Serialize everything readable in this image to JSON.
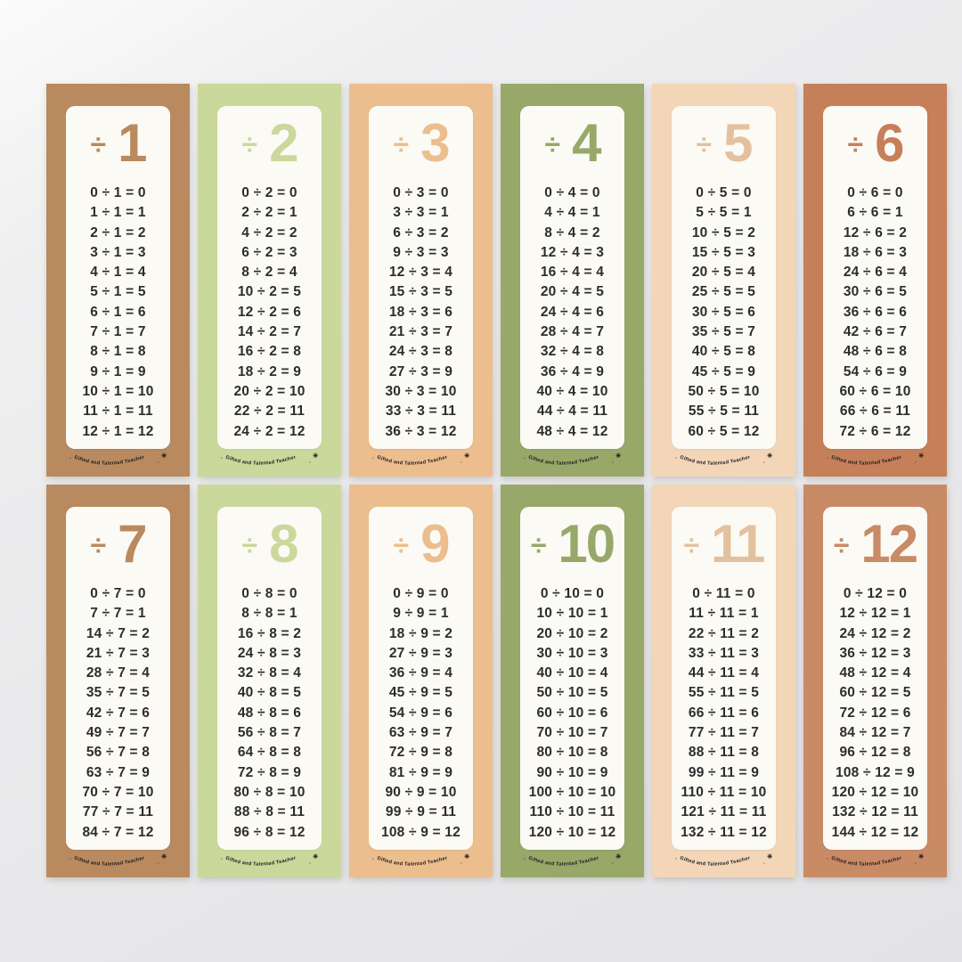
{
  "divide_sign": "÷",
  "footer": {
    "text": "Gifted and Talented Teacher",
    "star": "✳",
    "dot": "·"
  },
  "cards": [
    {
      "number": "1",
      "color": "#b98a5f",
      "heading_color": "#b98a5f",
      "equations": [
        "0 ÷ 1 = 0",
        "1 ÷ 1 = 1",
        "2 ÷ 1 = 2",
        "3 ÷ 1 = 3",
        "4 ÷ 1 = 4",
        "5 ÷ 1 = 5",
        "6 ÷ 1 = 6",
        "7 ÷ 1 = 7",
        "8 ÷ 1 = 8",
        "9 ÷ 1 = 9",
        "10 ÷ 1 = 10",
        "11 ÷ 1 = 11",
        "12 ÷ 1 = 12"
      ]
    },
    {
      "number": "2",
      "color": "#cbd89b",
      "heading_color": "#cbd89b",
      "equations": [
        "0 ÷ 2 = 0",
        "2 ÷ 2 = 1",
        "4 ÷ 2 = 2",
        "6 ÷ 2 = 3",
        "8 ÷ 2 = 4",
        "10 ÷ 2 = 5",
        "12 ÷ 2 = 6",
        "14 ÷ 2 = 7",
        "16 ÷ 2 = 8",
        "18 ÷ 2 = 9",
        "20 ÷ 2 = 10",
        "22 ÷ 2 = 11",
        "24 ÷ 2 = 12"
      ]
    },
    {
      "number": "3",
      "color": "#ecbe8e",
      "heading_color": "#ecbe8e",
      "equations": [
        "0 ÷ 3 = 0",
        "3 ÷ 3 = 1",
        "6 ÷ 3 = 2",
        "9 ÷ 3 = 3",
        "12 ÷ 3 = 4",
        "15 ÷ 3 = 5",
        "18 ÷ 3 = 6",
        "21 ÷ 3 = 7",
        "24 ÷ 3 = 8",
        "27 ÷ 3 = 9",
        "30 ÷ 3 = 10",
        "33 ÷ 3 = 11",
        "36 ÷ 3 = 12"
      ]
    },
    {
      "number": "4",
      "color": "#97a869",
      "heading_color": "#97a869",
      "equations": [
        "0 ÷ 4 = 0",
        "4 ÷ 4 = 1",
        "8 ÷ 4 = 2",
        "12 ÷ 4 = 3",
        "16 ÷ 4 = 4",
        "20 ÷ 4 = 5",
        "24 ÷ 4 = 6",
        "28 ÷ 4 = 7",
        "32 ÷ 4 = 8",
        "36 ÷ 4 = 9",
        "40 ÷ 4 = 10",
        "44 ÷ 4 = 11",
        "48 ÷ 4 = 12"
      ]
    },
    {
      "number": "5",
      "color": "#f3d6b8",
      "heading_color": "#e3c19e",
      "equations": [
        "0 ÷ 5 = 0",
        "5 ÷ 5 = 1",
        "10 ÷ 5 = 2",
        "15 ÷ 5 = 3",
        "20 ÷ 5 = 4",
        "25 ÷ 5 = 5",
        "30 ÷ 5 = 6",
        "35 ÷ 5 = 7",
        "40 ÷ 5 = 8",
        "45 ÷ 5 = 9",
        "50 ÷ 5 = 10",
        "55 ÷ 5 = 11",
        "60 ÷ 5 = 12"
      ]
    },
    {
      "number": "6",
      "color": "#c5805a",
      "heading_color": "#c5805a",
      "equations": [
        "0 ÷ 6 = 0",
        "6 ÷ 6 = 1",
        "12 ÷ 6 = 2",
        "18 ÷ 6 = 3",
        "24 ÷ 6 = 4",
        "30 ÷ 6 = 5",
        "36 ÷ 6 = 6",
        "42 ÷ 6 = 7",
        "48 ÷ 6 = 8",
        "54 ÷ 6 = 9",
        "60 ÷ 6 = 10",
        "66 ÷ 6 = 11",
        "72 ÷ 6 = 12"
      ]
    },
    {
      "number": "7",
      "color": "#b98a5f",
      "heading_color": "#b98a5f",
      "equations": [
        "0 ÷ 7 = 0",
        "7 ÷ 7 = 1",
        "14 ÷ 7 = 2",
        "21 ÷ 7 = 3",
        "28 ÷ 7 = 4",
        "35 ÷ 7 = 5",
        "42 ÷ 7 = 6",
        "49 ÷ 7 = 7",
        "56 ÷ 7 = 8",
        "63 ÷ 7 = 9",
        "70 ÷ 7 = 10",
        "77 ÷ 7 = 11",
        "84 ÷ 7 = 12"
      ]
    },
    {
      "number": "8",
      "color": "#cbd89b",
      "heading_color": "#cbd89b",
      "equations": [
        "0 ÷ 8 = 0",
        "8 ÷ 8 = 1",
        "16 ÷ 8 = 2",
        "24 ÷ 8 = 3",
        "32 ÷ 8 = 4",
        "40 ÷ 8 = 5",
        "48 ÷ 8 = 6",
        "56 ÷ 8 = 7",
        "64 ÷ 8 = 8",
        "72 ÷ 8 = 9",
        "80 ÷ 8 = 10",
        "88 ÷ 8 = 11",
        "96 ÷ 8 = 12"
      ]
    },
    {
      "number": "9",
      "color": "#ecbe8e",
      "heading_color": "#ecbe8e",
      "equations": [
        "0 ÷ 9 = 0",
        "9 ÷ 9 = 1",
        "18 ÷ 9 = 2",
        "27 ÷ 9 = 3",
        "36 ÷ 9 = 4",
        "45 ÷ 9 = 5",
        "54 ÷ 9 = 6",
        "63 ÷ 9 = 7",
        "72 ÷ 9 = 8",
        "81 ÷ 9 = 9",
        "90 ÷ 9 = 10",
        "99 ÷ 9 = 11",
        "108 ÷ 9 = 12"
      ]
    },
    {
      "number": "10",
      "color": "#97a869",
      "heading_color": "#97a869",
      "equations": [
        "0 ÷ 10 = 0",
        "10 ÷ 10 = 1",
        "20 ÷ 10 = 2",
        "30 ÷ 10 = 3",
        "40 ÷ 10 = 4",
        "50 ÷ 10 = 5",
        "60 ÷ 10 = 6",
        "70 ÷ 10 = 7",
        "80 ÷ 10 = 8",
        "90 ÷ 10 = 9",
        "100 ÷ 10 = 10",
        "110 ÷ 10 = 11",
        "120 ÷ 10 = 12"
      ]
    },
    {
      "number": "11",
      "color": "#f3d6b8",
      "heading_color": "#e3c19e",
      "equations": [
        "0 ÷ 11 = 0",
        "11 ÷ 11 = 1",
        "22 ÷ 11 = 2",
        "33 ÷ 11 = 3",
        "44 ÷ 11 = 4",
        "55 ÷ 11 = 5",
        "66 ÷ 11 = 6",
        "77 ÷ 11 = 7",
        "88 ÷ 11 = 8",
        "99 ÷ 11 = 9",
        "110 ÷ 11 = 10",
        "121 ÷ 11 = 11",
        "132 ÷ 11 = 12"
      ]
    },
    {
      "number": "12",
      "color": "#c98a66",
      "heading_color": "#c98a66",
      "equations": [
        "0 ÷ 12 = 0",
        "12 ÷ 12 = 1",
        "24 ÷ 12 = 2",
        "36 ÷ 12 = 3",
        "48 ÷ 12 = 4",
        "60 ÷ 12 = 5",
        "72 ÷ 12 = 6",
        "84 ÷ 12 = 7",
        "96 ÷ 12 = 8",
        "108 ÷ 12 = 9",
        "120 ÷ 12 = 10",
        "132 ÷ 12 = 11",
        "144 ÷ 12 = 12"
      ]
    }
  ]
}
